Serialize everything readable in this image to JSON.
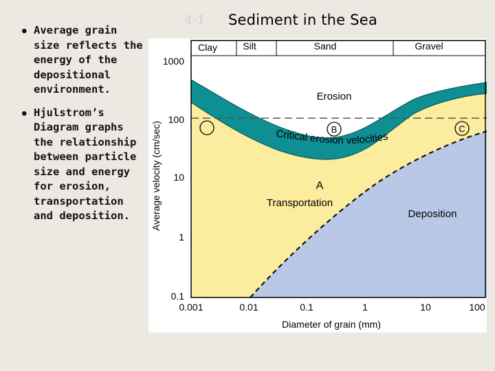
{
  "slide": {
    "number": "4-1",
    "title": "Sediment in the Sea"
  },
  "bullets": [
    "Average grain size reflects the energy of the depositional environment.",
    "Hjulstrom’s Diagram graphs the relationship between particle size and energy for erosion, transportation and deposition."
  ],
  "diagram": {
    "xlabel": "Diameter of grain (mm)",
    "ylabel": "Average velocity (cm/sec)",
    "x_ticks": [
      "0.001",
      "0.01",
      "0.1",
      "1",
      "10",
      "100"
    ],
    "y_ticks": [
      "0.1",
      "1",
      "10",
      "100",
      "1000"
    ],
    "top_classes": [
      "Clay",
      "Silt",
      "Sand",
      "Gravel"
    ],
    "region_labels": {
      "erosion": "Erosion",
      "transportation": "Transportation",
      "deposition": "Deposition",
      "critical": "Critical erosion velocities"
    },
    "markers": [
      "A",
      "B",
      "C"
    ],
    "colors": {
      "erosion": "#ffffff",
      "transport": "#fbec9e",
      "deposition": "#b8c8e6",
      "critical_band": "#0e8f94",
      "frame": "#000000"
    }
  }
}
